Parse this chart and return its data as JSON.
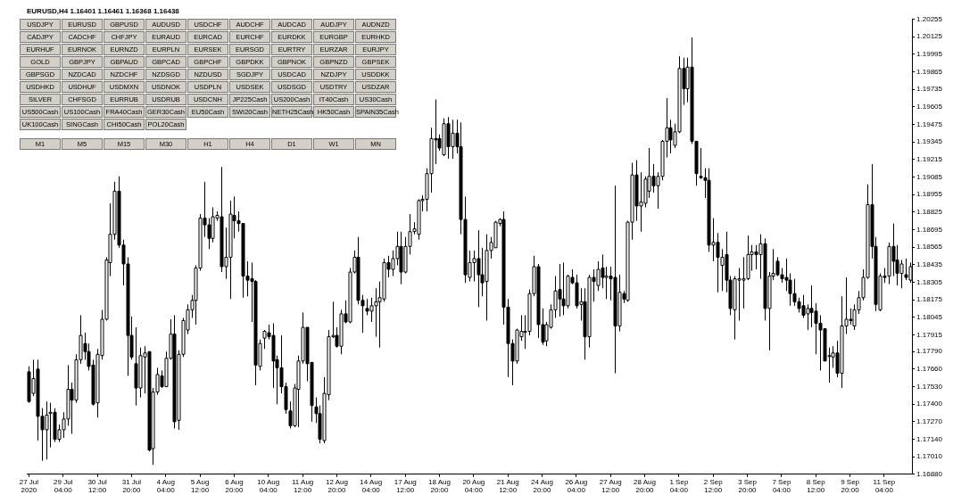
{
  "chart_data": {
    "type": "candlestick",
    "title": "EURUSD,H4 1.16401 1.16461 1.16368 1.16438",
    "color": "#000000",
    "categories": [
      "27 Jul 2020",
      null,
      null,
      null,
      null,
      null,
      null,
      null,
      "29 Jul 04:00",
      null,
      null,
      null,
      null,
      null,
      null,
      null,
      "30 Jul 12:00",
      null,
      null,
      null,
      null,
      null,
      null,
      null,
      "31 Jul 20:00",
      null,
      null,
      null,
      null,
      null,
      null,
      null,
      "4 Aug 04:00",
      null,
      null,
      null,
      null,
      null,
      null,
      null,
      "5 Aug 12:00",
      null,
      null,
      null,
      null,
      null,
      null,
      null,
      "6 Aug 20:00",
      null,
      null,
      null,
      null,
      null,
      null,
      null,
      "10 Aug 04:00",
      null,
      null,
      null,
      null,
      null,
      null,
      null,
      "11 Aug 12:00",
      null,
      null,
      null,
      null,
      null,
      null,
      null,
      "12 Aug 20:00",
      null,
      null,
      null,
      null,
      null,
      null,
      null,
      "14 Aug 04:00",
      null,
      null,
      null,
      null,
      null,
      null,
      null,
      "17 Aug 12:00",
      null,
      null,
      null,
      null,
      null,
      null,
      null,
      "18 Aug 20:00",
      null,
      null,
      null,
      null,
      null,
      null,
      null,
      "20 Aug 04:00",
      null,
      null,
      null,
      null,
      null,
      null,
      null,
      "21 Aug 12:00",
      null,
      null,
      null,
      null,
      null,
      null,
      null,
      "24 Aug 20:00",
      null,
      null,
      null,
      null,
      null,
      null,
      null,
      "26 Aug 04:00",
      null,
      null,
      null,
      null,
      null,
      null,
      null,
      "27 Aug 12:00",
      null,
      null,
      null,
      null,
      null,
      null,
      null,
      "28 Aug 20:00",
      null,
      null,
      null,
      null,
      null,
      null,
      null,
      "1 Sep 04:00",
      null,
      null,
      null,
      null,
      null,
      null,
      null,
      "2 Sep 12:00",
      null,
      null,
      null,
      null,
      null,
      null,
      null,
      "3 Sep 20:00",
      null,
      null,
      null,
      null,
      null,
      null,
      null,
      "7 Sep 04:00",
      null,
      null,
      null,
      null,
      null,
      null,
      null,
      "8 Sep 12:00",
      null,
      null,
      null,
      null,
      null,
      null,
      null,
      "9 Sep 20:00",
      null,
      null,
      null,
      null,
      null,
      null,
      null,
      "11 Sep 04:00",
      null,
      null,
      null,
      null,
      null,
      null
    ],
    "ohlc": [
      [
        1.1764,
        1.1768,
        1.1741,
        1.1742
      ],
      [
        1.1748,
        1.1773,
        1.1746,
        1.1759
      ],
      [
        1.1766,
        1.1773,
        1.1713,
        1.1731
      ],
      [
        1.1731,
        1.1737,
        1.1698,
        1.1721
      ],
      [
        1.1721,
        1.1742,
        1.1699,
        1.1732
      ],
      [
        1.1733,
        1.1741,
        1.1708,
        1.1734
      ],
      [
        1.1734,
        1.1737,
        1.1712,
        1.1714
      ],
      [
        1.1714,
        1.1725,
        1.1712,
        1.1721
      ],
      [
        1.1721,
        1.1734,
        1.1715,
        1.1729
      ],
      [
        1.1729,
        1.1769,
        1.1724,
        1.1751
      ],
      [
        1.1751,
        1.1756,
        1.1718,
        1.1743
      ],
      [
        1.1743,
        1.1777,
        1.1741,
        1.1773
      ],
      [
        1.1773,
        1.1806,
        1.177,
        1.1791
      ],
      [
        1.1785,
        1.1793,
        1.1773,
        1.1779
      ],
      [
        1.1779,
        1.1785,
        1.1765,
        1.1768
      ],
      [
        1.1769,
        1.1773,
        1.1739,
        1.174
      ],
      [
        1.1741,
        1.1781,
        1.173,
        1.1777
      ],
      [
        1.1776,
        1.181,
        1.1773,
        1.1803
      ],
      [
        1.1803,
        1.1849,
        1.1802,
        1.1847
      ],
      [
        1.1845,
        1.1889,
        1.1835,
        1.1866
      ],
      [
        1.1866,
        1.1905,
        1.1862,
        1.1898
      ],
      [
        1.1898,
        1.1909,
        1.1856,
        1.1858
      ],
      [
        1.1858,
        1.1862,
        1.1828,
        1.1844
      ],
      [
        1.1844,
        1.1849,
        1.1761,
        1.1791
      ],
      [
        1.1791,
        1.1805,
        1.1773,
        1.1775
      ],
      [
        1.177,
        1.1797,
        1.1739,
        1.1752
      ],
      [
        1.1752,
        1.1782,
        1.1745,
        1.1776
      ],
      [
        1.1775,
        1.1783,
        1.1748,
        1.1778
      ],
      [
        1.1779,
        1.1779,
        1.1705,
        1.1706
      ],
      [
        1.1707,
        1.1752,
        1.1695,
        1.1749
      ],
      [
        1.1749,
        1.1767,
        1.1747,
        1.1762
      ],
      [
        1.1761,
        1.1765,
        1.1752,
        1.1753
      ],
      [
        1.1753,
        1.1779,
        1.1753,
        1.1774
      ],
      [
        1.1774,
        1.1803,
        1.1773,
        1.1792
      ],
      [
        1.1792,
        1.1806,
        1.1722,
        1.1727
      ],
      [
        1.1728,
        1.178,
        1.1721,
        1.1777
      ],
      [
        1.1777,
        1.1804,
        1.1775,
        1.1802
      ],
      [
        1.1795,
        1.1814,
        1.1792,
        1.181
      ],
      [
        1.181,
        1.1821,
        1.1804,
        1.1817
      ],
      [
        1.1817,
        1.1843,
        1.1799,
        1.1841
      ],
      [
        1.1841,
        1.1881,
        1.1839,
        1.1878
      ],
      [
        1.1878,
        1.1905,
        1.1864,
        1.1873
      ],
      [
        1.1873,
        1.1878,
        1.1855,
        1.1863
      ],
      [
        1.1863,
        1.1886,
        1.186,
        1.1879
      ],
      [
        1.1878,
        1.1883,
        1.1876,
        1.188
      ],
      [
        1.1879,
        1.1916,
        1.1838,
        1.1842
      ],
      [
        1.1842,
        1.1871,
        1.1833,
        1.1849
      ],
      [
        1.1849,
        1.1891,
        1.1818,
        1.1881
      ],
      [
        1.188,
        1.1894,
        1.1863,
        1.1876
      ],
      [
        1.1876,
        1.1883,
        1.1868,
        1.1874
      ],
      [
        1.1874,
        1.1874,
        1.1819,
        1.1835
      ],
      [
        1.1835,
        1.1846,
        1.182,
        1.1832
      ],
      [
        1.1833,
        1.1845,
        1.1801,
        1.1831
      ],
      [
        1.1831,
        1.1832,
        1.1754,
        1.1769
      ],
      [
        1.1768,
        1.1788,
        1.1765,
        1.1785
      ],
      [
        1.1789,
        1.1795,
        1.1781,
        1.1794
      ],
      [
        1.1793,
        1.1799,
        1.1788,
        1.179
      ],
      [
        1.1791,
        1.18,
        1.1752,
        1.1772
      ],
      [
        1.1773,
        1.1776,
        1.174,
        1.1767
      ],
      [
        1.1767,
        1.1791,
        1.1748,
        1.1753
      ],
      [
        1.1753,
        1.1756,
        1.1733,
        1.1736
      ],
      [
        1.1735,
        1.1742,
        1.1722,
        1.1724
      ],
      [
        1.1724,
        1.1755,
        1.1723,
        1.1752
      ],
      [
        1.1751,
        1.1776,
        1.1723,
        1.1772
      ],
      [
        1.1772,
        1.1808,
        1.177,
        1.1797
      ],
      [
        1.1797,
        1.1797,
        1.1757,
        1.177
      ],
      [
        1.1771,
        1.1771,
        1.1727,
        1.1739
      ],
      [
        1.1738,
        1.1745,
        1.1726,
        1.1733
      ],
      [
        1.1733,
        1.1739,
        1.1711,
        1.1714
      ],
      [
        1.1713,
        1.176,
        1.1711,
        1.1748
      ],
      [
        1.1747,
        1.1795,
        1.1743,
        1.179
      ],
      [
        1.179,
        1.1816,
        1.1789,
        1.1791
      ],
      [
        1.1791,
        1.1797,
        1.1782,
        1.1783
      ],
      [
        1.1783,
        1.181,
        1.1777,
        1.1807
      ],
      [
        1.1807,
        1.1817,
        1.18,
        1.1801
      ],
      [
        1.1801,
        1.1841,
        1.18,
        1.1838
      ],
      [
        1.1838,
        1.1854,
        1.1837,
        1.1849
      ],
      [
        1.1849,
        1.1864,
        1.1814,
        1.1817
      ],
      [
        1.1817,
        1.1821,
        1.1793,
        1.1813
      ],
      [
        1.1811,
        1.1818,
        1.1806,
        1.1809
      ],
      [
        1.1809,
        1.1819,
        1.1801,
        1.1813
      ],
      [
        1.1813,
        1.1826,
        1.179,
        1.1816
      ],
      [
        1.1816,
        1.1831,
        1.1782,
        1.1819
      ],
      [
        1.1818,
        1.1848,
        1.1816,
        1.1845
      ],
      [
        1.1845,
        1.185,
        1.1834,
        1.184
      ],
      [
        1.184,
        1.1854,
        1.1835,
        1.1848
      ],
      [
        1.1848,
        1.1868,
        1.1843,
        1.1857
      ],
      [
        1.1857,
        1.1868,
        1.1829,
        1.1838
      ],
      [
        1.1838,
        1.1864,
        1.1837,
        1.1857
      ],
      [
        1.1857,
        1.1881,
        1.1851,
        1.1868
      ],
      [
        1.1868,
        1.1875,
        1.1866,
        1.187
      ],
      [
        1.1866,
        1.1892,
        1.1862,
        1.1891
      ],
      [
        1.1891,
        1.1895,
        1.1883,
        1.1892
      ],
      [
        1.1892,
        1.1915,
        1.1883,
        1.1911
      ],
      [
        1.1911,
        1.1945,
        1.1897,
        1.1937
      ],
      [
        1.1937,
        1.1966,
        1.1918,
        1.1936
      ],
      [
        1.1937,
        1.194,
        1.1928,
        1.193
      ],
      [
        1.1925,
        1.1952,
        1.1924,
        1.1948
      ],
      [
        1.1948,
        1.1953,
        1.1922,
        1.1931
      ],
      [
        1.1931,
        1.1951,
        1.1922,
        1.1941
      ],
      [
        1.1941,
        1.1951,
        1.1926,
        1.1931
      ],
      [
        1.1931,
        1.1949,
        1.1866,
        1.1877
      ],
      [
        1.1877,
        1.1894,
        1.183,
        1.1836
      ],
      [
        1.1834,
        1.1854,
        1.1831,
        1.1845
      ],
      [
        1.1845,
        1.1854,
        1.1831,
        1.1848
      ],
      [
        1.1848,
        1.1869,
        1.1812,
        1.1836
      ],
      [
        1.1836,
        1.1856,
        1.182,
        1.183
      ],
      [
        1.1831,
        1.1866,
        1.1802,
        1.1854
      ],
      [
        1.1854,
        1.1864,
        1.1848,
        1.186
      ],
      [
        1.1856,
        1.1876,
        1.1856,
        1.1875
      ],
      [
        1.1874,
        1.1878,
        1.1872,
        1.1877
      ],
      [
        1.1877,
        1.1883,
        1.1799,
        1.1812
      ],
      [
        1.1812,
        1.1818,
        1.176,
        1.1785
      ],
      [
        1.1785,
        1.1788,
        1.1754,
        1.1772
      ],
      [
        1.1772,
        1.1796,
        1.177,
        1.1795
      ],
      [
        1.179,
        1.1806,
        1.1787,
        1.1794
      ],
      [
        1.1794,
        1.1806,
        1.1781,
        1.1794
      ],
      [
        1.1794,
        1.1825,
        1.1791,
        1.1822
      ],
      [
        1.1822,
        1.185,
        1.182,
        1.1842
      ],
      [
        1.1842,
        1.1844,
        1.1789,
        1.1799
      ],
      [
        1.1799,
        1.1811,
        1.1784,
        1.1786
      ],
      [
        1.1787,
        1.1801,
        1.1783,
        1.1799
      ],
      [
        1.1797,
        1.1814,
        1.1796,
        1.181
      ],
      [
        1.181,
        1.1835,
        1.1804,
        1.1824
      ],
      [
        1.1825,
        1.1844,
        1.1805,
        1.1818
      ],
      [
        1.1818,
        1.1845,
        1.1806,
        1.1813
      ],
      [
        1.1813,
        1.1836,
        1.1811,
        1.1835
      ],
      [
        1.1834,
        1.184,
        1.1829,
        1.183
      ],
      [
        1.183,
        1.1836,
        1.1811,
        1.1813
      ],
      [
        1.1814,
        1.1826,
        1.1802,
        1.1816
      ],
      [
        1.1816,
        1.1826,
        1.1773,
        1.179
      ],
      [
        1.179,
        1.1836,
        1.1782,
        1.1834
      ],
      [
        1.1834,
        1.184,
        1.1816,
        1.1831
      ],
      [
        1.1828,
        1.1846,
        1.1824,
        1.184
      ],
      [
        1.1841,
        1.1851,
        1.1826,
        1.1834
      ],
      [
        1.1834,
        1.1842,
        1.1818,
        1.1835
      ],
      [
        1.1835,
        1.1842,
        1.1817,
        1.1833
      ],
      [
        1.1834,
        1.1902,
        1.1763,
        1.1798
      ],
      [
        1.1798,
        1.1836,
        1.1794,
        1.1823
      ],
      [
        1.1822,
        1.1824,
        1.1815,
        1.1818
      ],
      [
        1.1817,
        1.1876,
        1.1816,
        1.1875
      ],
      [
        1.1875,
        1.1919,
        1.1862,
        1.191
      ],
      [
        1.191,
        1.1921,
        1.1876,
        1.1887
      ],
      [
        1.1887,
        1.1912,
        1.1868,
        1.189
      ],
      [
        1.1889,
        1.1909,
        1.1886,
        1.1907
      ],
      [
        1.1898,
        1.193,
        1.1893,
        1.1909
      ],
      [
        1.1909,
        1.1918,
        1.1897,
        1.1902
      ],
      [
        1.1902,
        1.1912,
        1.1885,
        1.1909
      ],
      [
        1.1909,
        1.1936,
        1.1906,
        1.1935
      ],
      [
        1.1935,
        1.1967,
        1.1923,
        1.1945
      ],
      [
        1.1945,
        1.1951,
        1.1926,
        1.1936
      ],
      [
        1.1932,
        1.1948,
        1.193,
        1.1942
      ],
      [
        1.1942,
        1.1998,
        1.1941,
        1.1989
      ],
      [
        1.1989,
        1.1997,
        1.1962,
        1.1974
      ],
      [
        1.1974,
        1.1997,
        1.1964,
        1.199
      ],
      [
        1.199,
        1.2012,
        1.1933,
        1.1935
      ],
      [
        1.1935,
        1.1935,
        1.1902,
        1.1911
      ],
      [
        1.1909,
        1.193,
        1.1907,
        1.1908
      ],
      [
        1.1908,
        1.1915,
        1.1893,
        1.1906
      ],
      [
        1.1906,
        1.1915,
        1.1853,
        1.1858
      ],
      [
        1.1858,
        1.1878,
        1.1846,
        1.186
      ],
      [
        1.186,
        1.1867,
        1.1823,
        1.1849
      ],
      [
        1.1843,
        1.1855,
        1.1824,
        1.1849
      ],
      [
        1.1851,
        1.1868,
        1.1823,
        1.1832
      ],
      [
        1.1832,
        1.1835,
        1.1806,
        1.1811
      ],
      [
        1.181,
        1.1835,
        1.1788,
        1.1833
      ],
      [
        1.1832,
        1.1841,
        1.1802,
        1.1833
      ],
      [
        1.1832,
        1.1849,
        1.1811,
        1.1833
      ],
      [
        1.1833,
        1.1865,
        1.1832,
        1.1851
      ],
      [
        1.1851,
        1.1858,
        1.1839,
        1.1853
      ],
      [
        1.1853,
        1.1858,
        1.184,
        1.1851
      ],
      [
        1.1851,
        1.1866,
        1.1833,
        1.1859
      ],
      [
        1.1859,
        1.1863,
        1.1802,
        1.1811
      ],
      [
        1.1811,
        1.1838,
        1.178,
        1.1835
      ],
      [
        1.1835,
        1.1855,
        1.1832,
        1.1837
      ],
      [
        1.1846,
        1.1849,
        1.1835,
        1.1836
      ],
      [
        1.1836,
        1.1841,
        1.183,
        1.1833
      ],
      [
        1.1834,
        1.1848,
        1.1824,
        1.1832
      ],
      [
        1.1832,
        1.1837,
        1.1813,
        1.1822
      ],
      [
        1.1822,
        1.1833,
        1.1813,
        1.1816
      ],
      [
        1.1816,
        1.1819,
        1.1808,
        1.1811
      ],
      [
        1.1813,
        1.1821,
        1.1804,
        1.1806
      ],
      [
        1.1807,
        1.1814,
        1.1795,
        1.1811
      ],
      [
        1.1811,
        1.1828,
        1.1797,
        1.1808
      ],
      [
        1.1809,
        1.1815,
        1.1777,
        1.18
      ],
      [
        1.18,
        1.1806,
        1.1765,
        1.1795
      ],
      [
        1.1796,
        1.1796,
        1.1772,
        1.1772
      ],
      [
        1.1776,
        1.1782,
        1.1756,
        1.1776
      ],
      [
        1.1775,
        1.1783,
        1.1767,
        1.1778
      ],
      [
        1.1778,
        1.1787,
        1.176,
        1.1763
      ],
      [
        1.1763,
        1.182,
        1.1752,
        1.1798
      ],
      [
        1.1798,
        1.1834,
        1.1792,
        1.1803
      ],
      [
        1.1803,
        1.1811,
        1.1799,
        1.1802
      ],
      [
        1.1798,
        1.1814,
        1.1795,
        1.181
      ],
      [
        1.181,
        1.1824,
        1.1807,
        1.1819
      ],
      [
        1.1819,
        1.184,
        1.1817,
        1.1834
      ],
      [
        1.1834,
        1.1903,
        1.1833,
        1.1888
      ],
      [
        1.1888,
        1.1918,
        1.1848,
        1.1857
      ],
      [
        1.1857,
        1.1864,
        1.1809,
        1.1814
      ],
      [
        1.181,
        1.1837,
        1.1809,
        1.1835
      ],
      [
        1.1835,
        1.1841,
        1.183,
        1.1834
      ],
      [
        1.1835,
        1.186,
        1.1829,
        1.1857
      ],
      [
        1.1857,
        1.1874,
        1.1835,
        1.1846
      ],
      [
        1.1847,
        1.1858,
        1.1828,
        1.1837
      ],
      [
        1.1837,
        1.1847,
        1.1826,
        1.1844
      ],
      [
        1.1836,
        1.1848,
        1.1832,
        1.1834
      ],
      [
        1.1832,
        1.1845,
        1.183,
        1.1842
      ]
    ],
    "ylim": [
      1.1688,
      1.20255
    ],
    "yticks": [
      {
        "value": 1.1688,
        "label": "1.16880"
      },
      {
        "value": 1.1701,
        "label": "1.17010"
      },
      {
        "value": 1.1714,
        "label": "1.17140"
      },
      {
        "value": 1.1727,
        "label": "1.17270"
      },
      {
        "value": 1.174,
        "label": "1.17400"
      },
      {
        "value": 1.1753,
        "label": "1.17530"
      },
      {
        "value": 1.1766,
        "label": "1.17660"
      },
      {
        "value": 1.1779,
        "label": "1.17790"
      },
      1.17915,
      1.18045,
      1.18175,
      1.18305,
      1.18435,
      1.18565,
      1.18695,
      1.18825,
      1.18955,
      1.19085,
      1.19215,
      1.19345,
      1.19475,
      1.19605,
      1.19735,
      1.19865,
      1.19995,
      1.20125,
      1.20255
    ],
    "annotations": [
      "USDJPY",
      "EURUSD",
      "GBPUSD",
      "AUDUSD",
      "USDCHF",
      "AUDCHF",
      "AUDCAD",
      "AUDJPY",
      "AUDNZD",
      "CADJPY",
      "CADCHF",
      "CHFJPY",
      "EURAUD",
      "EURCAD",
      "EURCHF",
      "EURDKK",
      "EURGBP",
      "EURHKD",
      "EURHUF",
      "EURNOK",
      "EURNZD",
      "EURPLN",
      "EURSEK",
      "EURSGD",
      "EURTRY",
      "EURZAR",
      "EURJPY",
      "GOLD",
      "GBPJPY",
      "GBPAUD",
      "GBPCAD",
      "GBPCHF",
      "GBPDKK",
      "GBPNOK",
      "GBPNZD",
      "GBPSEK",
      "GBPSGD",
      "NZDCAD",
      "NZDCHF",
      "NZDSGD",
      "NZDUSD",
      "SGDJPY",
      "USDCAD",
      "NZDJPY",
      "USDDKK",
      "USDHKD",
      "USDHUF",
      "USDMXN",
      "USDNOK",
      "USDPLN",
      "USDSEK",
      "USDSGD",
      "USDTRY",
      "USDZAR",
      "SILVER",
      "CHFSGD",
      "EURRUB",
      "USDRUB",
      "USDCNH",
      "JP225Cash",
      "US200Cash",
      "IT40Cash",
      "US30Cash",
      "US500Cash",
      "US100Cash",
      "FRA40Cash",
      "GER30Cash",
      "EU50Cash",
      "SWI20Cash",
      "NETH25Cash",
      "HK50Cash",
      "SPAIN35Cash",
      "UK100Cash",
      "SINGCash",
      "CHI50Cash",
      "POL20Cash",
      "M1",
      "M5",
      "M15",
      "M30",
      "H1",
      "H4",
      "D1",
      "W1",
      "MN"
    ]
  }
}
